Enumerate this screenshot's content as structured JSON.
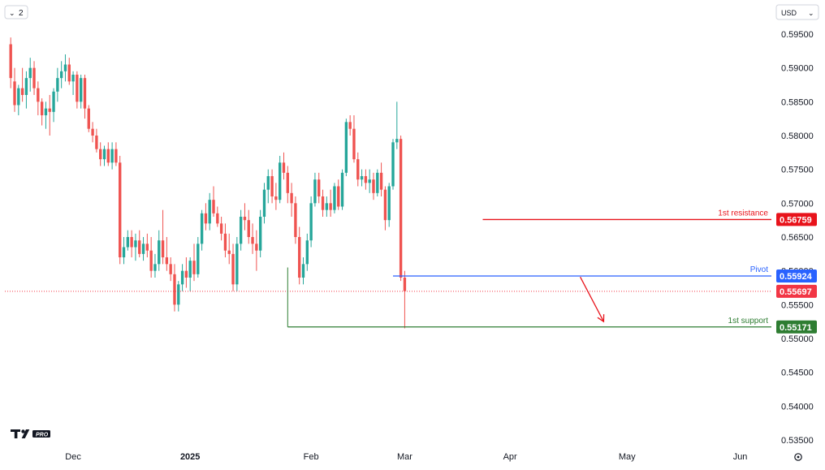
{
  "toolbar": {
    "collapse_icon": "chevron-down-icon",
    "indicator_count": "2",
    "currency": "USD",
    "currency_icon": "chevron-down-icon"
  },
  "logo": {
    "text": "TV PRO"
  },
  "footer": {
    "settings_icon": "gear-icon"
  },
  "colors": {
    "up": "#26a69a",
    "down": "#ef5350",
    "resistance": "#e8131b",
    "pivot": "#2962ff",
    "support": "#2e7d32",
    "last_price": "#f23645"
  },
  "chart_data": {
    "type": "candlestick",
    "symbol_currency": "USD",
    "y_axis": {
      "min": 0.535,
      "max": 0.598,
      "ticks": [
        "0.59500",
        "0.59000",
        "0.58500",
        "0.58000",
        "0.57500",
        "0.57000",
        "0.56500",
        "0.56000",
        "0.55500",
        "0.55000",
        "0.54500",
        "0.54000",
        "0.53500"
      ]
    },
    "x_axis": {
      "labels": [
        {
          "text": "Dec",
          "bold": false,
          "index": 16
        },
        {
          "text": "2025",
          "bold": true,
          "index": 46
        },
        {
          "text": "Feb",
          "bold": false,
          "index": 77
        },
        {
          "text": "Mar",
          "bold": false,
          "index": 101
        },
        {
          "text": "Apr",
          "bold": false,
          "index": 128
        },
        {
          "text": "May",
          "bold": false,
          "index": 158
        },
        {
          "text": "Jun",
          "bold": false,
          "index": 187
        }
      ]
    },
    "candles": [
      [
        0.5935,
        0.5945,
        0.587,
        0.5885
      ],
      [
        0.588,
        0.59,
        0.5835,
        0.5845
      ],
      [
        0.5845,
        0.5875,
        0.583,
        0.587
      ],
      [
        0.587,
        0.59,
        0.585,
        0.586
      ],
      [
        0.586,
        0.5895,
        0.584,
        0.5885
      ],
      [
        0.5885,
        0.5915,
        0.5865,
        0.59
      ],
      [
        0.59,
        0.591,
        0.586,
        0.587
      ],
      [
        0.587,
        0.588,
        0.583,
        0.585
      ],
      [
        0.585,
        0.5855,
        0.5815,
        0.583
      ],
      [
        0.583,
        0.585,
        0.581,
        0.584
      ],
      [
        0.584,
        0.586,
        0.58,
        0.5835
      ],
      [
        0.5835,
        0.587,
        0.582,
        0.5865
      ],
      [
        0.5865,
        0.59,
        0.585,
        0.5885
      ],
      [
        0.5885,
        0.591,
        0.587,
        0.5895
      ],
      [
        0.5895,
        0.592,
        0.588,
        0.5905
      ],
      [
        0.5905,
        0.5915,
        0.5875,
        0.588
      ],
      [
        0.588,
        0.5895,
        0.586,
        0.589
      ],
      [
        0.589,
        0.5895,
        0.584,
        0.585
      ],
      [
        0.585,
        0.589,
        0.584,
        0.5885
      ],
      [
        0.5885,
        0.589,
        0.5825,
        0.584
      ],
      [
        0.584,
        0.5845,
        0.5805,
        0.581
      ],
      [
        0.581,
        0.582,
        0.579,
        0.58
      ],
      [
        0.58,
        0.581,
        0.5775,
        0.578
      ],
      [
        0.578,
        0.579,
        0.5755,
        0.5765
      ],
      [
        0.5765,
        0.5785,
        0.5755,
        0.578
      ],
      [
        0.578,
        0.579,
        0.5755,
        0.576
      ],
      [
        0.576,
        0.579,
        0.575,
        0.578
      ],
      [
        0.578,
        0.579,
        0.5755,
        0.576
      ],
      [
        0.576,
        0.577,
        0.561,
        0.562
      ],
      [
        0.562,
        0.565,
        0.561,
        0.5635
      ],
      [
        0.5635,
        0.566,
        0.563,
        0.565
      ],
      [
        0.565,
        0.566,
        0.562,
        0.5635
      ],
      [
        0.5635,
        0.5655,
        0.5615,
        0.5645
      ],
      [
        0.5645,
        0.566,
        0.562,
        0.5625
      ],
      [
        0.5625,
        0.565,
        0.5615,
        0.564
      ],
      [
        0.564,
        0.5655,
        0.562,
        0.563
      ],
      [
        0.563,
        0.565,
        0.559,
        0.56
      ],
      [
        0.56,
        0.5625,
        0.559,
        0.561
      ],
      [
        0.561,
        0.566,
        0.56,
        0.5645
      ],
      [
        0.5645,
        0.569,
        0.561,
        0.562
      ],
      [
        0.562,
        0.565,
        0.56,
        0.561
      ],
      [
        0.561,
        0.562,
        0.5585,
        0.5595
      ],
      [
        0.5595,
        0.561,
        0.554,
        0.555
      ],
      [
        0.555,
        0.5585,
        0.554,
        0.558
      ],
      [
        0.558,
        0.561,
        0.557,
        0.56
      ],
      [
        0.56,
        0.562,
        0.5575,
        0.559
      ],
      [
        0.559,
        0.562,
        0.557,
        0.5615
      ],
      [
        0.5615,
        0.564,
        0.5585,
        0.5595
      ],
      [
        0.5595,
        0.565,
        0.559,
        0.564
      ],
      [
        0.564,
        0.569,
        0.563,
        0.5685
      ],
      [
        0.5685,
        0.57,
        0.566,
        0.567
      ],
      [
        0.567,
        0.5715,
        0.566,
        0.5705
      ],
      [
        0.5705,
        0.5725,
        0.568,
        0.5685
      ],
      [
        0.5685,
        0.5695,
        0.5665,
        0.567
      ],
      [
        0.567,
        0.568,
        0.5645,
        0.5655
      ],
      [
        0.5655,
        0.567,
        0.562,
        0.563
      ],
      [
        0.563,
        0.5655,
        0.561,
        0.5625
      ],
      [
        0.5625,
        0.564,
        0.557,
        0.558
      ],
      [
        0.558,
        0.565,
        0.557,
        0.564
      ],
      [
        0.564,
        0.569,
        0.563,
        0.568
      ],
      [
        0.568,
        0.57,
        0.566,
        0.5675
      ],
      [
        0.5675,
        0.569,
        0.564,
        0.565
      ],
      [
        0.565,
        0.567,
        0.5625,
        0.564
      ],
      [
        0.564,
        0.566,
        0.56,
        0.563
      ],
      [
        0.563,
        0.569,
        0.562,
        0.568
      ],
      [
        0.568,
        0.573,
        0.567,
        0.572
      ],
      [
        0.572,
        0.575,
        0.57,
        0.574
      ],
      [
        0.574,
        0.575,
        0.57,
        0.571
      ],
      [
        0.571,
        0.573,
        0.569,
        0.5705
      ],
      [
        0.5705,
        0.577,
        0.57,
        0.576
      ],
      [
        0.576,
        0.5775,
        0.5735,
        0.5745
      ],
      [
        0.5745,
        0.5755,
        0.57,
        0.5715
      ],
      [
        0.5715,
        0.573,
        0.568,
        0.57
      ],
      [
        0.57,
        0.571,
        0.564,
        0.565
      ],
      [
        0.565,
        0.5665,
        0.558,
        0.559
      ],
      [
        0.559,
        0.562,
        0.558,
        0.561
      ],
      [
        0.561,
        0.5655,
        0.56,
        0.5645
      ],
      [
        0.5645,
        0.571,
        0.5635,
        0.57
      ],
      [
        0.57,
        0.5745,
        0.5695,
        0.5735
      ],
      [
        0.5735,
        0.5745,
        0.57,
        0.571
      ],
      [
        0.571,
        0.572,
        0.568,
        0.569
      ],
      [
        0.569,
        0.571,
        0.568,
        0.57
      ],
      [
        0.57,
        0.572,
        0.568,
        0.569
      ],
      [
        0.569,
        0.573,
        0.5685,
        0.5725
      ],
      [
        0.5725,
        0.5735,
        0.569,
        0.5695
      ],
      [
        0.5695,
        0.575,
        0.569,
        0.5745
      ],
      [
        0.5745,
        0.5825,
        0.574,
        0.582
      ],
      [
        0.582,
        0.583,
        0.58,
        0.581
      ],
      [
        0.581,
        0.583,
        0.576,
        0.5765
      ],
      [
        0.5765,
        0.5775,
        0.5725,
        0.5735
      ],
      [
        0.5735,
        0.575,
        0.5725,
        0.574
      ],
      [
        0.574,
        0.575,
        0.572,
        0.573
      ],
      [
        0.573,
        0.575,
        0.5715,
        0.5735
      ],
      [
        0.5735,
        0.5745,
        0.5705,
        0.5715
      ],
      [
        0.5715,
        0.575,
        0.571,
        0.5745
      ],
      [
        0.5745,
        0.576,
        0.571,
        0.572
      ],
      [
        0.572,
        0.5725,
        0.566,
        0.5675
      ],
      [
        0.5675,
        0.573,
        0.5665,
        0.5725
      ],
      [
        0.5725,
        0.5795,
        0.572,
        0.579
      ],
      [
        0.579,
        0.585,
        0.578,
        0.5795
      ],
      [
        0.5795,
        0.58,
        0.5585,
        0.559
      ],
      [
        0.559,
        0.56,
        0.5515,
        0.557
      ]
    ],
    "x_index_axis_range": [
      -1.5,
      195
    ],
    "current_price": 0.55697,
    "levels": [
      {
        "name": "resistance",
        "label": "1st resistance",
        "value": 0.56759,
        "start_index": 121
      },
      {
        "name": "pivot",
        "label": "Pivot",
        "value": 0.55924,
        "start_index": 98
      },
      {
        "name": "support",
        "label": "1st support",
        "value": 0.55171,
        "start_index": 71
      }
    ],
    "price_tags": [
      {
        "name": "resistance",
        "text": "0.56759"
      },
      {
        "name": "pivot",
        "text": "0.55924"
      },
      {
        "name": "last_price",
        "text": "0.55697"
      },
      {
        "name": "support",
        "text": "0.55171"
      }
    ],
    "projection_arrow": {
      "from": {
        "index": 146,
        "value": 0.5591
      },
      "to": {
        "index": 152,
        "value": 0.5525
      }
    }
  }
}
